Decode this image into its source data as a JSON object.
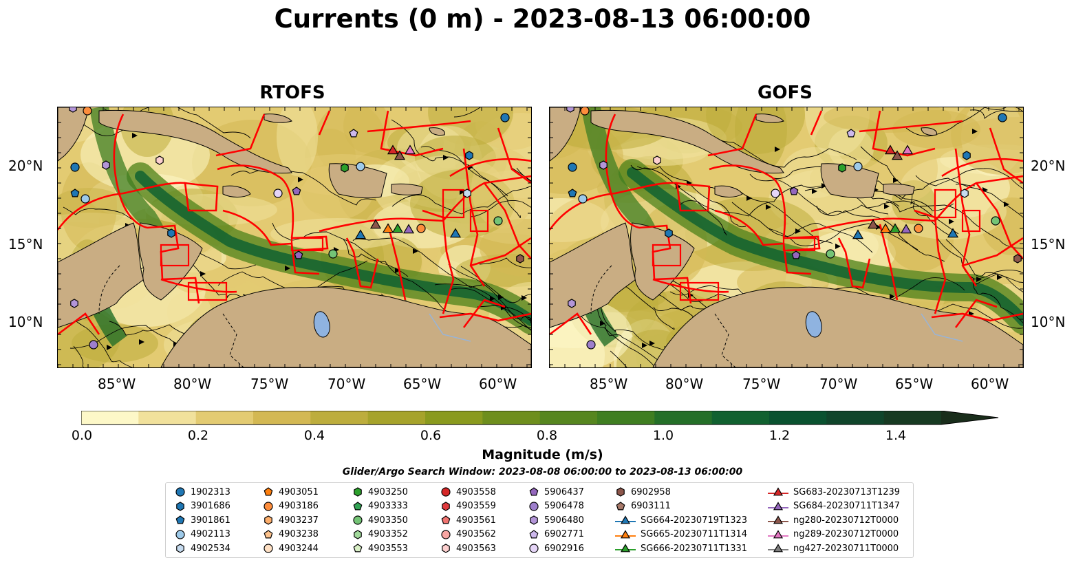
{
  "title": "Currents (0 m) - 2023-08-13 06:00:00",
  "panels": [
    {
      "title": "RTOFS"
    },
    {
      "title": "GOFS"
    }
  ],
  "lat_ticks": [
    "20°N",
    "15°N",
    "10°N"
  ],
  "lon_ticks": [
    "85°W",
    "80°W",
    "75°W",
    "70°W",
    "65°W",
    "60°W"
  ],
  "colorbar": {
    "label": "Magnitude (m/s)",
    "ticks": [
      "0.0",
      "0.2",
      "0.4",
      "0.6",
      "0.8",
      "1.0",
      "1.2",
      "1.4"
    ],
    "range": [
      0,
      1.5
    ],
    "colors": [
      "#fdf8c8",
      "#f1e19c",
      "#e3cb72",
      "#d3b853",
      "#bdad3d",
      "#a6a32b",
      "#8a9a1e",
      "#6e8e1d",
      "#56861f",
      "#3f7e21",
      "#246f28",
      "#116130",
      "#0a5230",
      "#10452b",
      "#173a22",
      "#192d1b"
    ]
  },
  "search_window": "Glider/Argo Search Window: 2023-08-08 06:00:00 to 2023-08-13 06:00:00",
  "legend": [
    {
      "label": "1902313",
      "marker": "circle",
      "color": "#1f77b4"
    },
    {
      "label": "3901686",
      "marker": "hexagon",
      "color": "#1f77b4"
    },
    {
      "label": "3901861",
      "marker": "pentagon",
      "color": "#1f77b4"
    },
    {
      "label": "4902113",
      "marker": "circle",
      "color": "#9ecae9"
    },
    {
      "label": "4902534",
      "marker": "hexagon",
      "color": "#c6dbef"
    },
    {
      "label": "4903051",
      "marker": "pentagon",
      "color": "#ff7f0e"
    },
    {
      "label": "4903186",
      "marker": "circle",
      "color": "#fd8d3c"
    },
    {
      "label": "4903237",
      "marker": "hexagon",
      "color": "#fdae6b"
    },
    {
      "label": "4903238",
      "marker": "pentagon",
      "color": "#fdc38d"
    },
    {
      "label": "4903244",
      "marker": "circle",
      "color": "#fee0c4"
    },
    {
      "label": "4903250",
      "marker": "hexagon",
      "color": "#2ca02c"
    },
    {
      "label": "4903333",
      "marker": "pentagon",
      "color": "#31a354"
    },
    {
      "label": "4903350",
      "marker": "circle",
      "color": "#74c476"
    },
    {
      "label": "4903352",
      "marker": "hexagon",
      "color": "#a1d99b"
    },
    {
      "label": "4903553",
      "marker": "pentagon",
      "color": "#d9f0c6"
    },
    {
      "label": "4903558",
      "marker": "circle",
      "color": "#d62728"
    },
    {
      "label": "4903559",
      "marker": "hexagon",
      "color": "#e03a3e"
    },
    {
      "label": "4903561",
      "marker": "pentagon",
      "color": "#f07470"
    },
    {
      "label": "4903562",
      "marker": "circle",
      "color": "#f8a6a3"
    },
    {
      "label": "4903563",
      "marker": "hexagon",
      "color": "#fdd0cf"
    },
    {
      "label": "5906437",
      "marker": "pentagon",
      "color": "#9467bd"
    },
    {
      "label": "5906478",
      "marker": "circle",
      "color": "#9e7fcc"
    },
    {
      "label": "5906480",
      "marker": "hexagon",
      "color": "#b395d8"
    },
    {
      "label": "6902771",
      "marker": "pentagon",
      "color": "#cdb8ec"
    },
    {
      "label": "6902916",
      "marker": "circle",
      "color": "#e5d5f7"
    },
    {
      "label": "6902958",
      "marker": "hexagon",
      "color": "#8c564b"
    },
    {
      "label": "6903111",
      "marker": "pentagon",
      "color": "#a87a6a"
    },
    {
      "label": "SG664-20230719T1323",
      "marker": "triangle",
      "color": "#1f77b4"
    },
    {
      "label": "SG665-20230711T1314",
      "marker": "triangle",
      "color": "#ff7f0e"
    },
    {
      "label": "SG666-20230711T1331",
      "marker": "triangle",
      "color": "#2ca02c"
    },
    {
      "label": "SG683-20230713T1239",
      "marker": "triangle",
      "color": "#d62728"
    },
    {
      "label": "SG684-20230711T1347",
      "marker": "triangle",
      "color": "#9467bd"
    },
    {
      "label": "ng280-20230712T0000",
      "marker": "triangle",
      "color": "#8c564b"
    },
    {
      "label": "ng289-20230712T0000",
      "marker": "triangle",
      "color": "#e377c2"
    },
    {
      "label": "ng427-20230711T0000",
      "marker": "triangle",
      "color": "#7f7f7f"
    }
  ],
  "map": {
    "land_color": "#c9ad83",
    "lake_color": "#8fb3e0",
    "boundary_color": "#ff0000",
    "streamline_color": "#000000"
  }
}
